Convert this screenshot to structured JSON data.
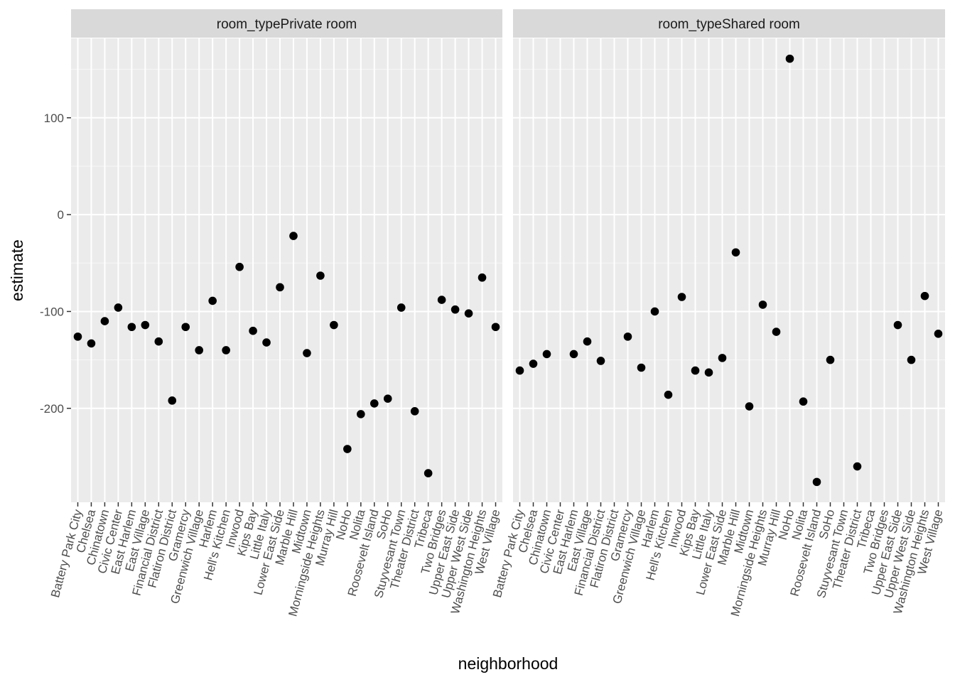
{
  "chart_data": {
    "type": "scatter",
    "xlabel": "neighborhood",
    "ylabel": "estimate",
    "ylim": [
      -297,
      182
    ],
    "y_ticks": [
      -200,
      -100,
      0,
      100
    ],
    "y_tick_labels": [
      "-200",
      "-100",
      "0",
      "100"
    ],
    "grid": true,
    "categories": [
      "Battery Park City",
      "Chelsea",
      "Chinatown",
      "Civic Center",
      "East Harlem",
      "East Village",
      "Financial District",
      "Flatiron District",
      "Gramercy",
      "Greenwich Village",
      "Harlem",
      "Hell's Kitchen",
      "Inwood",
      "Kips Bay",
      "Little Italy",
      "Lower East Side",
      "Marble Hill",
      "Midtown",
      "Morningside Heights",
      "Murray Hill",
      "NoHo",
      "Nolita",
      "Roosevelt Island",
      "SoHo",
      "Stuyvesant Town",
      "Theater District",
      "Tribeca",
      "Two Bridges",
      "Upper East Side",
      "Upper West Side",
      "Washington Heights",
      "West Village"
    ],
    "panels": [
      {
        "strip": "room_typePrivate room",
        "values": [
          -126,
          -133,
          -110,
          -96,
          -116,
          -114,
          -131,
          -192,
          -116,
          -140,
          -89,
          -140,
          -54,
          -120,
          -132,
          -75,
          -22,
          -143,
          -63,
          -114,
          -242,
          -206,
          -195,
          -190,
          -96,
          -203,
          -267,
          -88,
          -98,
          -102,
          -65,
          -116
        ]
      },
      {
        "strip": "room_typeShared room",
        "values": [
          -161,
          -154,
          -144,
          null,
          -144,
          -131,
          -151,
          null,
          -126,
          -158,
          -100,
          -186,
          -85,
          -161,
          -163,
          -148,
          -39,
          -198,
          -93,
          -121,
          161,
          -193,
          -276,
          -150,
          null,
          -260,
          null,
          null,
          -114,
          -150,
          -84,
          -123
        ]
      }
    ]
  }
}
